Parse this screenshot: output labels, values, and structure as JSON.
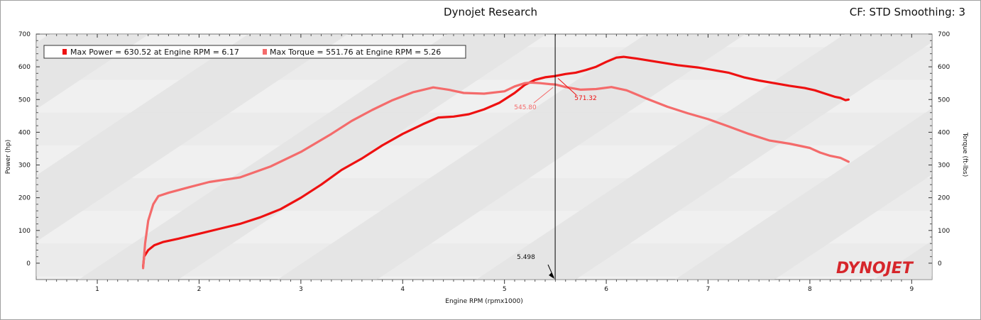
{
  "header": {
    "title": "Dynojet Research",
    "cf_label": "CF: STD Smoothing: 3"
  },
  "logo": {
    "text": "DYNOJET"
  },
  "colors": {
    "power": "#ee1111",
    "torque": "#f46b6b",
    "cursor": "#000000",
    "plot_bg": "#f0f0f0",
    "band": "#dcdcdc"
  },
  "chart_data": {
    "type": "line",
    "title": "Dynojet Research",
    "xlabel": "Engine RPM (rpmx1000)",
    "ylabel_left": "Power (hp)",
    "ylabel_right": "Torque (ft-lbs)",
    "xlim": [
      0.4,
      9.2
    ],
    "ylim": [
      -50,
      700
    ],
    "x_ticks": [
      1,
      2,
      3,
      4,
      5,
      6,
      7,
      8,
      9
    ],
    "y_ticks": [
      0,
      100,
      200,
      300,
      400,
      500,
      600,
      700
    ],
    "grid": false,
    "legend_position": "top-left",
    "legend": [
      "Max Power = 630.52 at Engine RPM = 6.17",
      "Max Torque = 551.76 at Engine RPM = 5.26"
    ],
    "cursor": {
      "x": 5.498,
      "label": "5.498"
    },
    "annotations": [
      {
        "text": "545.80",
        "series": "Max Torque",
        "x": 5.498,
        "y": 545.8
      },
      {
        "text": "571.32",
        "series": "Max Power",
        "x": 5.498,
        "y": 571.32
      }
    ],
    "series": [
      {
        "name": "Max Power",
        "x": [
          1.45,
          1.46,
          1.5,
          1.56,
          1.65,
          1.8,
          2.0,
          2.2,
          2.4,
          2.6,
          2.8,
          3.0,
          3.2,
          3.4,
          3.6,
          3.8,
          4.0,
          4.2,
          4.35,
          4.5,
          4.65,
          4.8,
          4.95,
          5.1,
          5.2,
          5.3,
          5.4,
          5.5,
          5.6,
          5.7,
          5.8,
          5.9,
          6.0,
          6.1,
          6.17,
          6.3,
          6.5,
          6.7,
          6.9,
          7.05,
          7.2,
          7.35,
          7.5,
          7.65,
          7.8,
          7.95,
          8.05,
          8.15,
          8.25,
          8.3,
          8.35,
          8.38
        ],
        "y": [
          -10,
          20,
          40,
          55,
          65,
          75,
          90,
          105,
          120,
          140,
          165,
          200,
          240,
          285,
          320,
          360,
          395,
          425,
          445,
          448,
          455,
          470,
          490,
          520,
          545,
          560,
          568,
          572,
          578,
          582,
          590,
          600,
          615,
          628,
          630.5,
          625,
          615,
          605,
          598,
          590,
          582,
          568,
          558,
          550,
          542,
          535,
          528,
          518,
          508,
          505,
          498,
          500
        ]
      },
      {
        "name": "Max Torque",
        "x": [
          1.45,
          1.47,
          1.5,
          1.55,
          1.6,
          1.7,
          1.9,
          2.1,
          2.4,
          2.7,
          3.0,
          3.3,
          3.5,
          3.7,
          3.9,
          4.1,
          4.3,
          4.45,
          4.6,
          4.8,
          5.0,
          5.1,
          5.2,
          5.26,
          5.35,
          5.45,
          5.5,
          5.6,
          5.75,
          5.9,
          6.05,
          6.2,
          6.4,
          6.6,
          6.8,
          7.0,
          7.2,
          7.4,
          7.6,
          7.8,
          8.0,
          8.1,
          8.2,
          8.3,
          8.38
        ],
        "y": [
          -15,
          60,
          130,
          180,
          205,
          215,
          232,
          248,
          262,
          295,
          340,
          395,
          435,
          468,
          498,
          522,
          537,
          530,
          520,
          518,
          525,
          540,
          550,
          551.8,
          550,
          547,
          545.8,
          538,
          530,
          532,
          538,
          528,
          502,
          478,
          458,
          440,
          418,
          395,
          375,
          365,
          352,
          338,
          328,
          322,
          310
        ]
      }
    ]
  }
}
